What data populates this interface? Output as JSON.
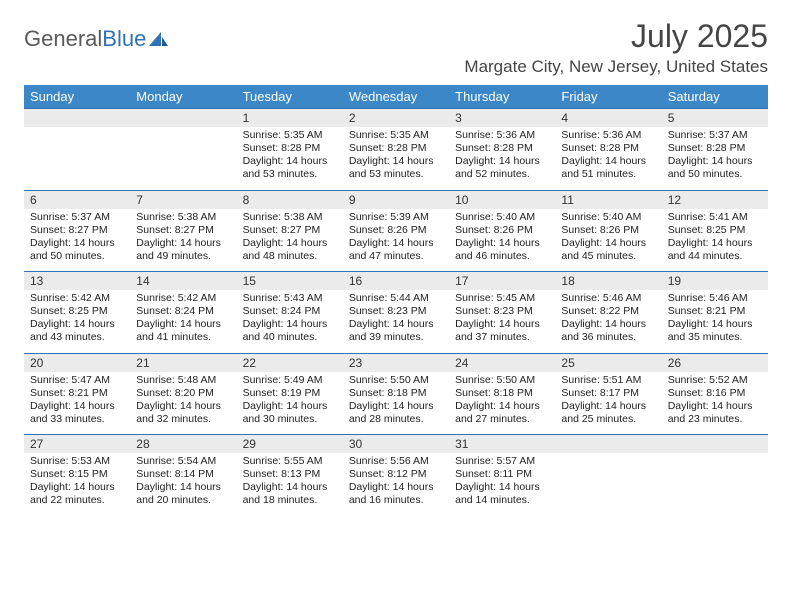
{
  "brand": {
    "part1": "General",
    "part2": "Blue"
  },
  "title": "July 2025",
  "location": "Margate City, New Jersey, United States",
  "colors": {
    "header_bg": "#3b87c8",
    "header_text": "#ffffff",
    "date_bg": "#ebebeb",
    "date_border": "#2f72b8",
    "body_text": "#222222",
    "brand_gray": "#5a5a5a",
    "brand_blue": "#2f72b8"
  },
  "day_names": [
    "Sunday",
    "Monday",
    "Tuesday",
    "Wednesday",
    "Thursday",
    "Friday",
    "Saturday"
  ],
  "weeks": [
    [
      {
        "date": "",
        "sunrise": "",
        "sunset": "",
        "daylight1": "",
        "daylight2": ""
      },
      {
        "date": "",
        "sunrise": "",
        "sunset": "",
        "daylight1": "",
        "daylight2": ""
      },
      {
        "date": "1",
        "sunrise": "Sunrise: 5:35 AM",
        "sunset": "Sunset: 8:28 PM",
        "daylight1": "Daylight: 14 hours",
        "daylight2": "and 53 minutes."
      },
      {
        "date": "2",
        "sunrise": "Sunrise: 5:35 AM",
        "sunset": "Sunset: 8:28 PM",
        "daylight1": "Daylight: 14 hours",
        "daylight2": "and 53 minutes."
      },
      {
        "date": "3",
        "sunrise": "Sunrise: 5:36 AM",
        "sunset": "Sunset: 8:28 PM",
        "daylight1": "Daylight: 14 hours",
        "daylight2": "and 52 minutes."
      },
      {
        "date": "4",
        "sunrise": "Sunrise: 5:36 AM",
        "sunset": "Sunset: 8:28 PM",
        "daylight1": "Daylight: 14 hours",
        "daylight2": "and 51 minutes."
      },
      {
        "date": "5",
        "sunrise": "Sunrise: 5:37 AM",
        "sunset": "Sunset: 8:28 PM",
        "daylight1": "Daylight: 14 hours",
        "daylight2": "and 50 minutes."
      }
    ],
    [
      {
        "date": "6",
        "sunrise": "Sunrise: 5:37 AM",
        "sunset": "Sunset: 8:27 PM",
        "daylight1": "Daylight: 14 hours",
        "daylight2": "and 50 minutes."
      },
      {
        "date": "7",
        "sunrise": "Sunrise: 5:38 AM",
        "sunset": "Sunset: 8:27 PM",
        "daylight1": "Daylight: 14 hours",
        "daylight2": "and 49 minutes."
      },
      {
        "date": "8",
        "sunrise": "Sunrise: 5:38 AM",
        "sunset": "Sunset: 8:27 PM",
        "daylight1": "Daylight: 14 hours",
        "daylight2": "and 48 minutes."
      },
      {
        "date": "9",
        "sunrise": "Sunrise: 5:39 AM",
        "sunset": "Sunset: 8:26 PM",
        "daylight1": "Daylight: 14 hours",
        "daylight2": "and 47 minutes."
      },
      {
        "date": "10",
        "sunrise": "Sunrise: 5:40 AM",
        "sunset": "Sunset: 8:26 PM",
        "daylight1": "Daylight: 14 hours",
        "daylight2": "and 46 minutes."
      },
      {
        "date": "11",
        "sunrise": "Sunrise: 5:40 AM",
        "sunset": "Sunset: 8:26 PM",
        "daylight1": "Daylight: 14 hours",
        "daylight2": "and 45 minutes."
      },
      {
        "date": "12",
        "sunrise": "Sunrise: 5:41 AM",
        "sunset": "Sunset: 8:25 PM",
        "daylight1": "Daylight: 14 hours",
        "daylight2": "and 44 minutes."
      }
    ],
    [
      {
        "date": "13",
        "sunrise": "Sunrise: 5:42 AM",
        "sunset": "Sunset: 8:25 PM",
        "daylight1": "Daylight: 14 hours",
        "daylight2": "and 43 minutes."
      },
      {
        "date": "14",
        "sunrise": "Sunrise: 5:42 AM",
        "sunset": "Sunset: 8:24 PM",
        "daylight1": "Daylight: 14 hours",
        "daylight2": "and 41 minutes."
      },
      {
        "date": "15",
        "sunrise": "Sunrise: 5:43 AM",
        "sunset": "Sunset: 8:24 PM",
        "daylight1": "Daylight: 14 hours",
        "daylight2": "and 40 minutes."
      },
      {
        "date": "16",
        "sunrise": "Sunrise: 5:44 AM",
        "sunset": "Sunset: 8:23 PM",
        "daylight1": "Daylight: 14 hours",
        "daylight2": "and 39 minutes."
      },
      {
        "date": "17",
        "sunrise": "Sunrise: 5:45 AM",
        "sunset": "Sunset: 8:23 PM",
        "daylight1": "Daylight: 14 hours",
        "daylight2": "and 37 minutes."
      },
      {
        "date": "18",
        "sunrise": "Sunrise: 5:46 AM",
        "sunset": "Sunset: 8:22 PM",
        "daylight1": "Daylight: 14 hours",
        "daylight2": "and 36 minutes."
      },
      {
        "date": "19",
        "sunrise": "Sunrise: 5:46 AM",
        "sunset": "Sunset: 8:21 PM",
        "daylight1": "Daylight: 14 hours",
        "daylight2": "and 35 minutes."
      }
    ],
    [
      {
        "date": "20",
        "sunrise": "Sunrise: 5:47 AM",
        "sunset": "Sunset: 8:21 PM",
        "daylight1": "Daylight: 14 hours",
        "daylight2": "and 33 minutes."
      },
      {
        "date": "21",
        "sunrise": "Sunrise: 5:48 AM",
        "sunset": "Sunset: 8:20 PM",
        "daylight1": "Daylight: 14 hours",
        "daylight2": "and 32 minutes."
      },
      {
        "date": "22",
        "sunrise": "Sunrise: 5:49 AM",
        "sunset": "Sunset: 8:19 PM",
        "daylight1": "Daylight: 14 hours",
        "daylight2": "and 30 minutes."
      },
      {
        "date": "23",
        "sunrise": "Sunrise: 5:50 AM",
        "sunset": "Sunset: 8:18 PM",
        "daylight1": "Daylight: 14 hours",
        "daylight2": "and 28 minutes."
      },
      {
        "date": "24",
        "sunrise": "Sunrise: 5:50 AM",
        "sunset": "Sunset: 8:18 PM",
        "daylight1": "Daylight: 14 hours",
        "daylight2": "and 27 minutes."
      },
      {
        "date": "25",
        "sunrise": "Sunrise: 5:51 AM",
        "sunset": "Sunset: 8:17 PM",
        "daylight1": "Daylight: 14 hours",
        "daylight2": "and 25 minutes."
      },
      {
        "date": "26",
        "sunrise": "Sunrise: 5:52 AM",
        "sunset": "Sunset: 8:16 PM",
        "daylight1": "Daylight: 14 hours",
        "daylight2": "and 23 minutes."
      }
    ],
    [
      {
        "date": "27",
        "sunrise": "Sunrise: 5:53 AM",
        "sunset": "Sunset: 8:15 PM",
        "daylight1": "Daylight: 14 hours",
        "daylight2": "and 22 minutes."
      },
      {
        "date": "28",
        "sunrise": "Sunrise: 5:54 AM",
        "sunset": "Sunset: 8:14 PM",
        "daylight1": "Daylight: 14 hours",
        "daylight2": "and 20 minutes."
      },
      {
        "date": "29",
        "sunrise": "Sunrise: 5:55 AM",
        "sunset": "Sunset: 8:13 PM",
        "daylight1": "Daylight: 14 hours",
        "daylight2": "and 18 minutes."
      },
      {
        "date": "30",
        "sunrise": "Sunrise: 5:56 AM",
        "sunset": "Sunset: 8:12 PM",
        "daylight1": "Daylight: 14 hours",
        "daylight2": "and 16 minutes."
      },
      {
        "date": "31",
        "sunrise": "Sunrise: 5:57 AM",
        "sunset": "Sunset: 8:11 PM",
        "daylight1": "Daylight: 14 hours",
        "daylight2": "and 14 minutes."
      },
      {
        "date": "",
        "sunrise": "",
        "sunset": "",
        "daylight1": "",
        "daylight2": ""
      },
      {
        "date": "",
        "sunrise": "",
        "sunset": "",
        "daylight1": "",
        "daylight2": ""
      }
    ]
  ]
}
